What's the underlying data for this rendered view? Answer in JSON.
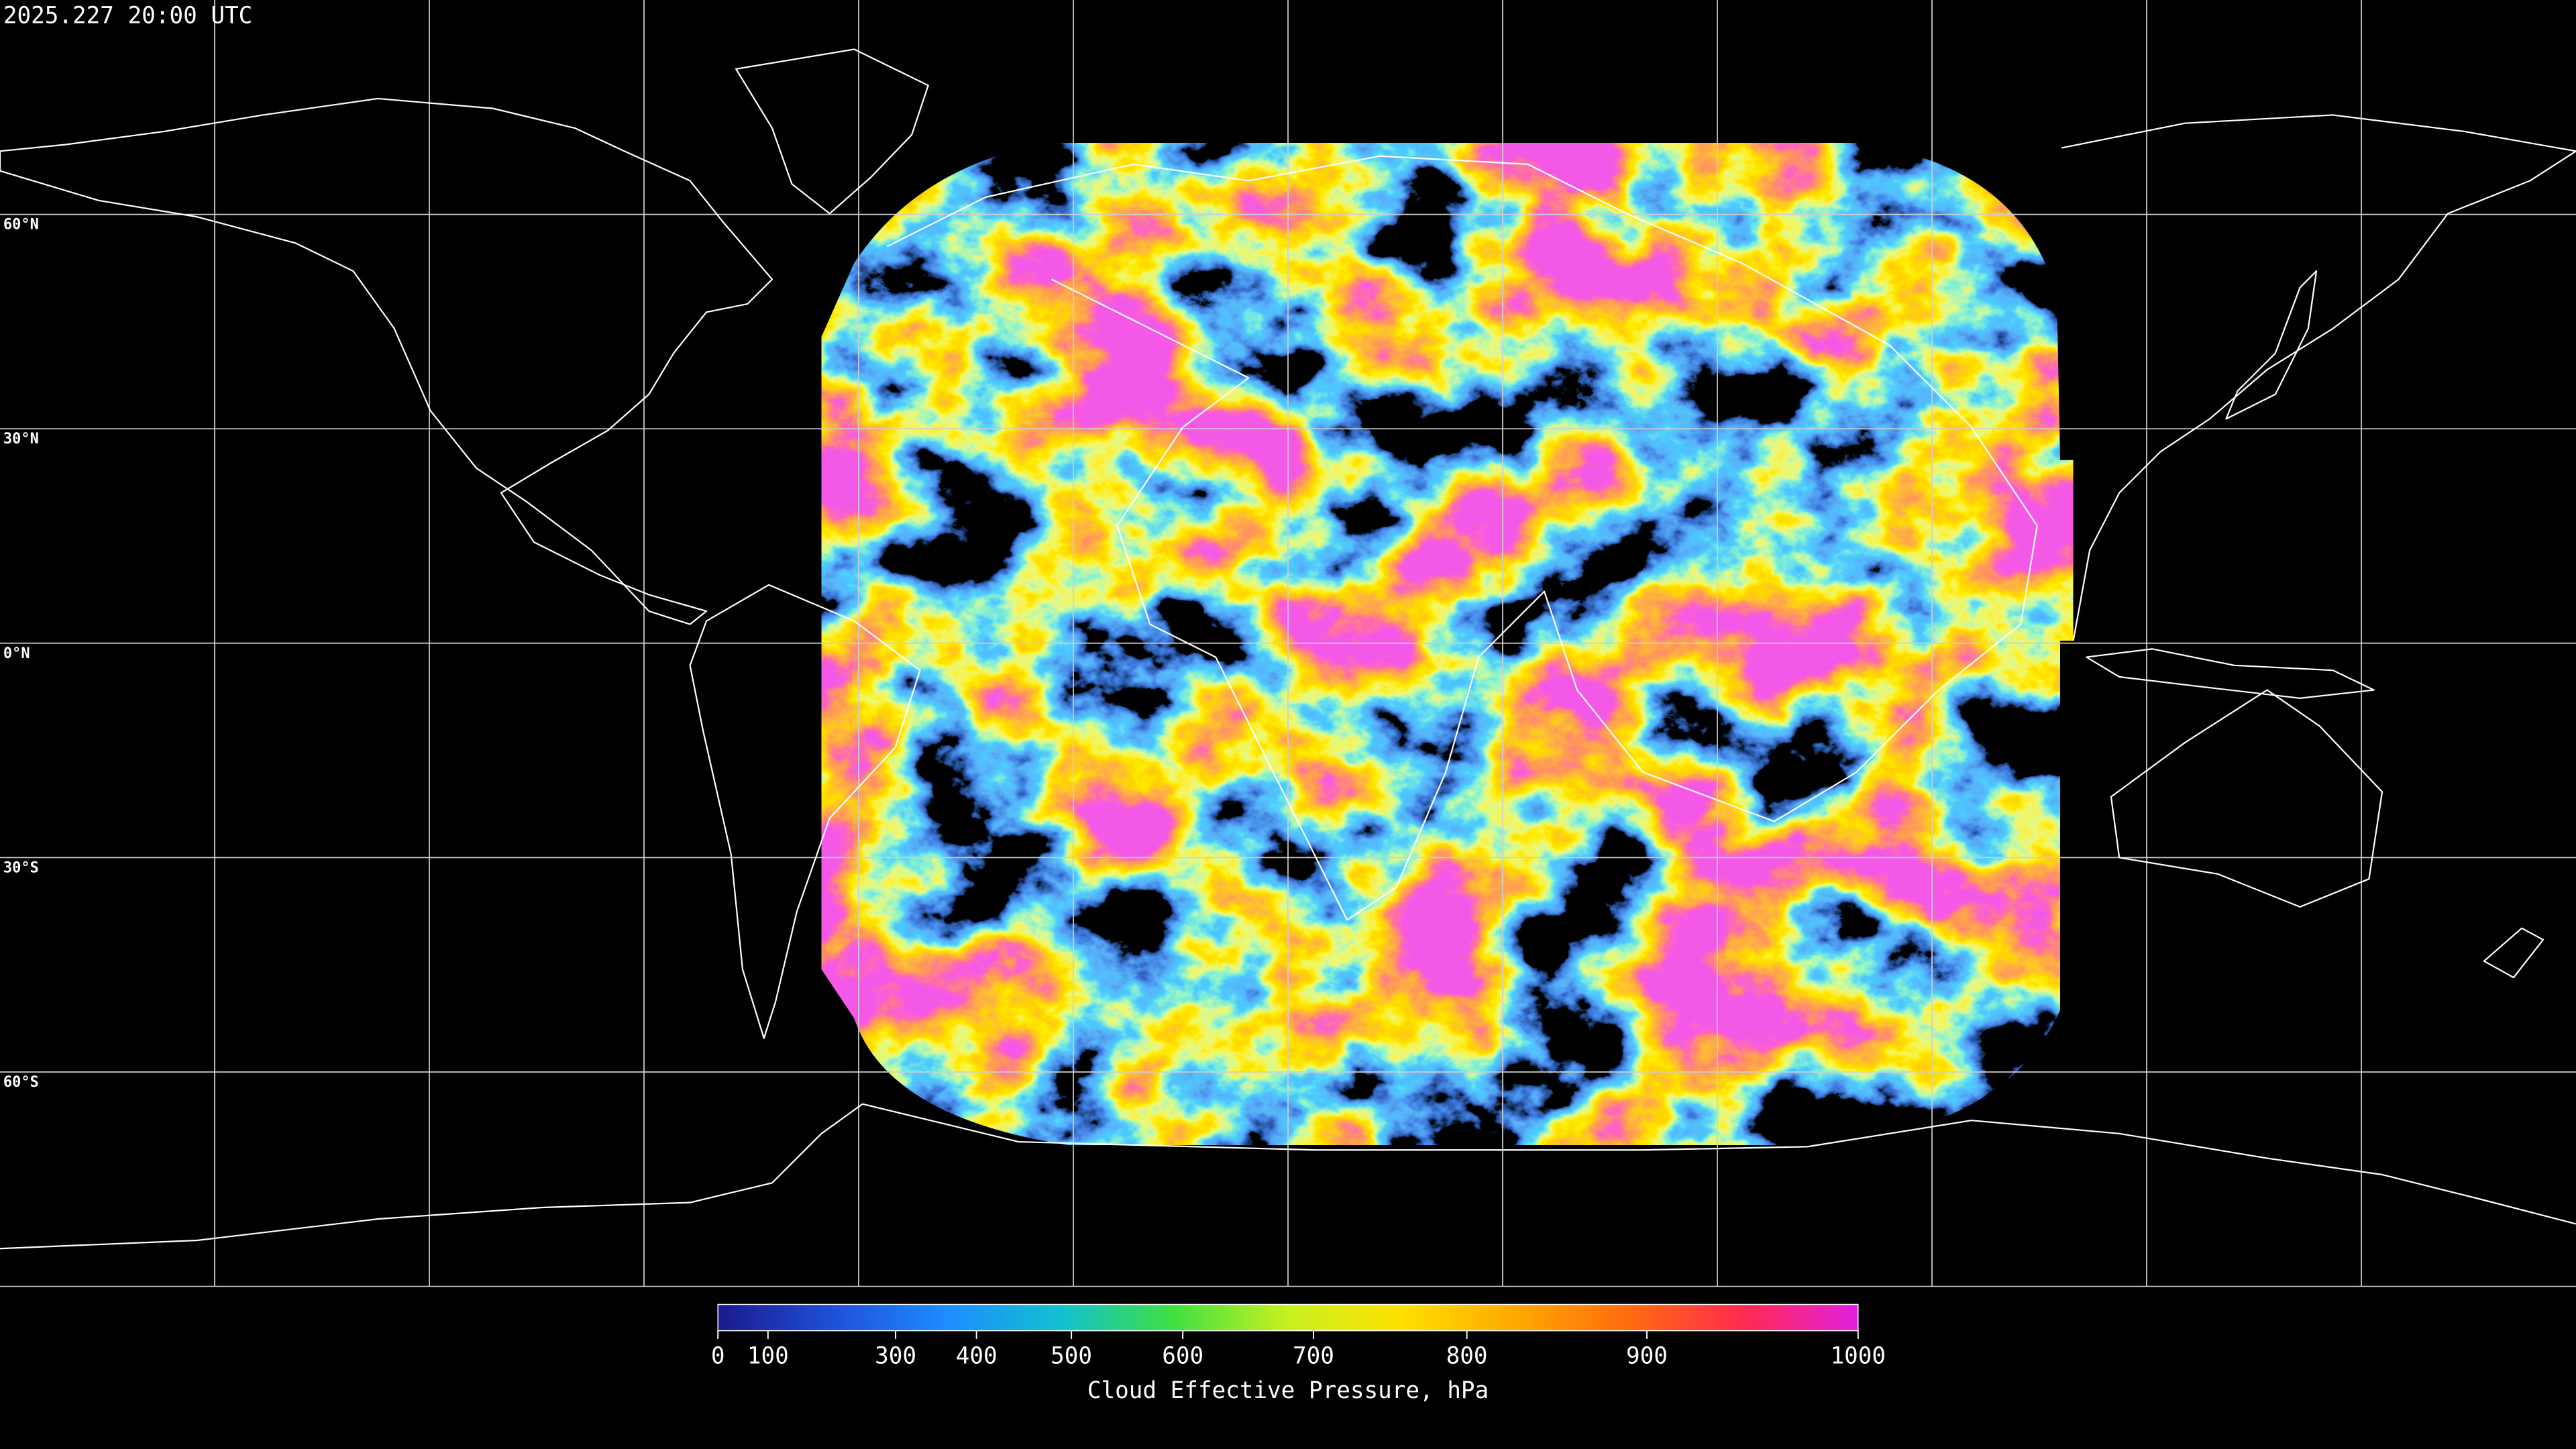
{
  "map": {
    "timestamp": "2025.227 20:00 UTC",
    "lat_grid": [
      {
        "value": 60,
        "label": "60°N"
      },
      {
        "value": 30,
        "label": "30°N"
      },
      {
        "value": 0,
        "label": "0°N"
      },
      {
        "value": -30,
        "label": "30°S"
      },
      {
        "value": -60,
        "label": "60°S"
      }
    ],
    "lon_grid": [
      -150,
      -120,
      -90,
      -60,
      -30,
      0,
      30,
      60,
      90,
      120,
      150
    ],
    "colorbar": {
      "title": "Cloud Effective Pressure, hPa",
      "lim": [
        0,
        1000
      ],
      "ticks": [
        0,
        100,
        300,
        400,
        500,
        600,
        700,
        800,
        900,
        1000
      ],
      "colors": [
        "#1a1a8c",
        "#1f4fd8",
        "#1e8cff",
        "#12c0d0",
        "#40e040",
        "#c8f020",
        "#ffe000",
        "#ffa800",
        "#ff6a10",
        "#ff2a50",
        "#e020e0"
      ]
    }
  }
}
